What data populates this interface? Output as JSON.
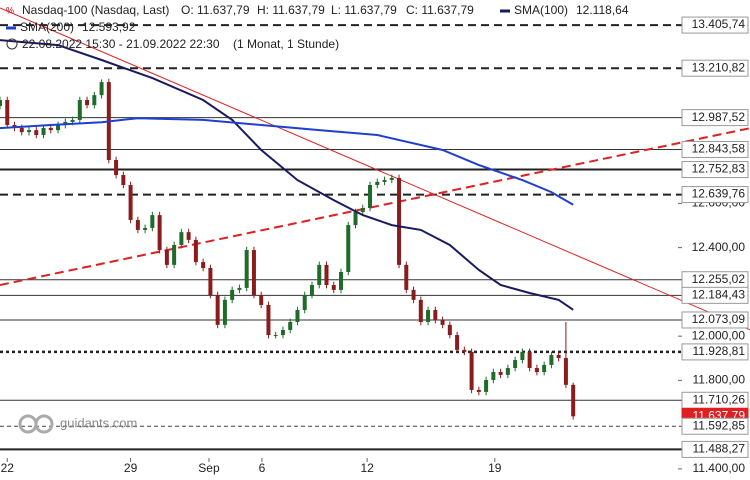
{
  "chart_data": {
    "type": "candlestick",
    "instrument": "Nasdaq-100 (Nasdaq, Last)",
    "quote": [
      "O: 11.637,79",
      "H: 11.637,79",
      "L: 11.637,79",
      "C: 11.637,79"
    ],
    "period": "22.08.2022 15:30 - 21.09.2022 22:30",
    "interval": "(1 Monat, 1 Stunde)",
    "watermark": "guidants.com",
    "up_color": "#1e6b2a",
    "down_color": "#8b1c1c",
    "xlim": [
      0,
      94
    ],
    "ylim": [
      11350,
      13519
    ],
    "xticks": [
      {
        "value": 1,
        "label": "22"
      },
      {
        "value": 18,
        "label": "29"
      },
      {
        "value": 28.8,
        "label": "Sep"
      },
      {
        "value": 36.1,
        "label": "6"
      },
      {
        "value": 50.6,
        "label": "12"
      },
      {
        "value": 68.2,
        "label": "19"
      }
    ],
    "yticks": [
      {
        "value": 12600,
        "label": "12.600,00"
      },
      {
        "value": 12400,
        "label": "12.400,00"
      },
      {
        "value": 12000,
        "label": "12.000,00"
      },
      {
        "value": 11800,
        "label": "11.800,00"
      },
      {
        "value": 11400,
        "label": "11.400,00"
      }
    ],
    "x": [
      0,
      1,
      2,
      3,
      4,
      5,
      6,
      7,
      8,
      9,
      10,
      11,
      12,
      13,
      14,
      15,
      16,
      17,
      18,
      19,
      20,
      21,
      22,
      23,
      24,
      25,
      26,
      27,
      28,
      29,
      30,
      31,
      32,
      33,
      34,
      35,
      36,
      37,
      38,
      39,
      40,
      41,
      42,
      43,
      44,
      45,
      46,
      47,
      48,
      49,
      50,
      51,
      52,
      53,
      54,
      55,
      56,
      57,
      58,
      59,
      60,
      61,
      62,
      63,
      64,
      65,
      66,
      67,
      68,
      69,
      70,
      71,
      72,
      73,
      74,
      75,
      76,
      77,
      78,
      79
    ],
    "open": [
      13040,
      13067,
      12954,
      12941,
      12922,
      12931,
      12909,
      12941,
      12931,
      12954,
      12968,
      12977,
      13067,
      13044,
      13089,
      13148,
      12796,
      12728,
      12683,
      12525,
      12480,
      12489,
      12547,
      12389,
      12322,
      12412,
      12470,
      12435,
      12335,
      12308,
      12186,
      12051,
      12164,
      12209,
      12218,
      12389,
      12186,
      12141,
      12005,
      12005,
      12028,
      12064,
      12118,
      12186,
      12231,
      12322,
      12231,
      12209,
      12290,
      12502,
      12561,
      12579,
      12683,
      12697,
      12706,
      12715,
      12322,
      12209,
      12164,
      12064,
      12118,
      12073,
      12051,
      12005,
      11938,
      11929,
      11757,
      11748,
      11802,
      11838,
      11825,
      11856,
      11892,
      11929,
      11856,
      11838,
      11870,
      11915,
      11901,
      11780
    ],
    "high": [
      13082,
      13082,
      12969,
      12956,
      12946,
      12946,
      12956,
      12956,
      12969,
      12983,
      12992,
      13082,
      13082,
      13104,
      13160,
      13163,
      12811,
      12743,
      12698,
      12540,
      12504,
      12562,
      12562,
      12404,
      12427,
      12485,
      12485,
      12450,
      12350,
      12323,
      12201,
      12179,
      12224,
      12233,
      12404,
      12404,
      12201,
      12156,
      12020,
      12043,
      12079,
      12133,
      12201,
      12246,
      12337,
      12337,
      12246,
      12305,
      12517,
      12576,
      12594,
      12698,
      12712,
      12721,
      12730,
      12730,
      12337,
      12224,
      12179,
      12133,
      12133,
      12088,
      12066,
      12020,
      11953,
      11944,
      11772,
      11817,
      11853,
      11853,
      11871,
      11907,
      11944,
      11944,
      11871,
      11885,
      11930,
      11930,
      12064,
      11790
    ],
    "low": [
      13025,
      12939,
      12926,
      12907,
      12907,
      12894,
      12894,
      12916,
      12916,
      12939,
      12953,
      12962,
      13029,
      13029,
      13074,
      12781,
      12713,
      12668,
      12510,
      12465,
      12465,
      12474,
      12374,
      12307,
      12307,
      12397,
      12420,
      12320,
      12293,
      12171,
      12036,
      12036,
      12149,
      12194,
      12203,
      12171,
      12126,
      11990,
      11990,
      11990,
      12013,
      12049,
      12103,
      12171,
      12216,
      12216,
      12194,
      12194,
      12275,
      12487,
      12546,
      12564,
      12668,
      12682,
      12691,
      12307,
      12194,
      12149,
      12049,
      12049,
      12058,
      12036,
      11990,
      11923,
      11914,
      11742,
      11733,
      11733,
      11787,
      11810,
      11810,
      11841,
      11877,
      11841,
      11823,
      11823,
      11855,
      11886,
      11765,
      11623
    ],
    "close": [
      13067,
      12954,
      12941,
      12922,
      12931,
      12909,
      12941,
      12931,
      12954,
      12968,
      12977,
      13067,
      13044,
      13089,
      13148,
      12796,
      12728,
      12683,
      12525,
      12480,
      12489,
      12547,
      12389,
      12322,
      12412,
      12470,
      12435,
      12335,
      12308,
      12186,
      12051,
      12164,
      12209,
      12218,
      12389,
      12186,
      12141,
      12005,
      12005,
      12028,
      12064,
      12118,
      12186,
      12231,
      12322,
      12231,
      12209,
      12290,
      12502,
      12561,
      12579,
      12683,
      12697,
      12706,
      12715,
      12322,
      12209,
      12164,
      12064,
      12118,
      12073,
      12051,
      12005,
      11938,
      11929,
      11757,
      11748,
      11802,
      11838,
      11825,
      11856,
      11892,
      11929,
      11856,
      11838,
      11870,
      11915,
      11901,
      11780,
      11637.79
    ],
    "series": [
      {
        "name": "SMA(100)",
        "color": "#1a1a5e",
        "legend_value": "12.118,64",
        "x": [
          0,
          8,
          14,
          21,
          28,
          32,
          36,
          41,
          46,
          50,
          54,
          58,
          62,
          66,
          69,
          73,
          77,
          79
        ],
        "values": [
          13338,
          13315,
          13248,
          13166,
          13067,
          12977,
          12841,
          12705,
          12615,
          12547,
          12502,
          12480,
          12412,
          12299,
          12231,
          12195,
          12164,
          12119
        ]
      },
      {
        "name": "SMA(200)",
        "color": "#1f3fcf",
        "legend_value": "12.593,92",
        "x": [
          0,
          7,
          14,
          19,
          28,
          36,
          44,
          52,
          61,
          66,
          72,
          76,
          79
        ],
        "values": [
          12940,
          12954,
          12967,
          12985,
          12977,
          12954,
          12931,
          12909,
          12841,
          12773,
          12705,
          12651,
          12593.92
        ]
      }
    ],
    "trendlines": [
      {
        "color": "#e02020",
        "style": "solid",
        "x": [
          0,
          103.4
        ],
        "values": [
          13483,
          12028
        ]
      },
      {
        "color": "#e02020",
        "style": "dashed",
        "x": [
          0,
          103.4
        ],
        "values": [
          12231,
          12940
        ]
      }
    ],
    "levels": [
      {
        "value": 13405.74,
        "label": "13.405,74",
        "style": "dashed-bold"
      },
      {
        "value": 13210.82,
        "label": "13.210,82",
        "style": "dashed-bold"
      },
      {
        "value": 12987.52,
        "label": "12.987,52",
        "style": "solid"
      },
      {
        "value": 12843.58,
        "label": "12.843,58",
        "style": "solid"
      },
      {
        "value": 12752.83,
        "label": "12.752,83",
        "style": "solid-bold"
      },
      {
        "value": 12639.76,
        "label": "12.639,76",
        "style": "dashed-bold"
      },
      {
        "value": 12255.02,
        "label": "12.255,02",
        "style": "solid"
      },
      {
        "value": 12184.43,
        "label": "12.184,43",
        "style": "solid"
      },
      {
        "value": 12073.09,
        "label": "12.073,09",
        "style": "solid"
      },
      {
        "value": 11928.81,
        "label": "11.928,81",
        "style": "dotted-bold"
      },
      {
        "value": 11710.26,
        "label": "11.710,26",
        "style": "solid"
      },
      {
        "value": 11637.79,
        "label": "11.637,79",
        "style": "current"
      },
      {
        "value": 11592.85,
        "label": "11.592,85",
        "style": "dashed"
      },
      {
        "value": 11488.27,
        "label": "11.488,27",
        "style": "solid-bold"
      }
    ]
  }
}
